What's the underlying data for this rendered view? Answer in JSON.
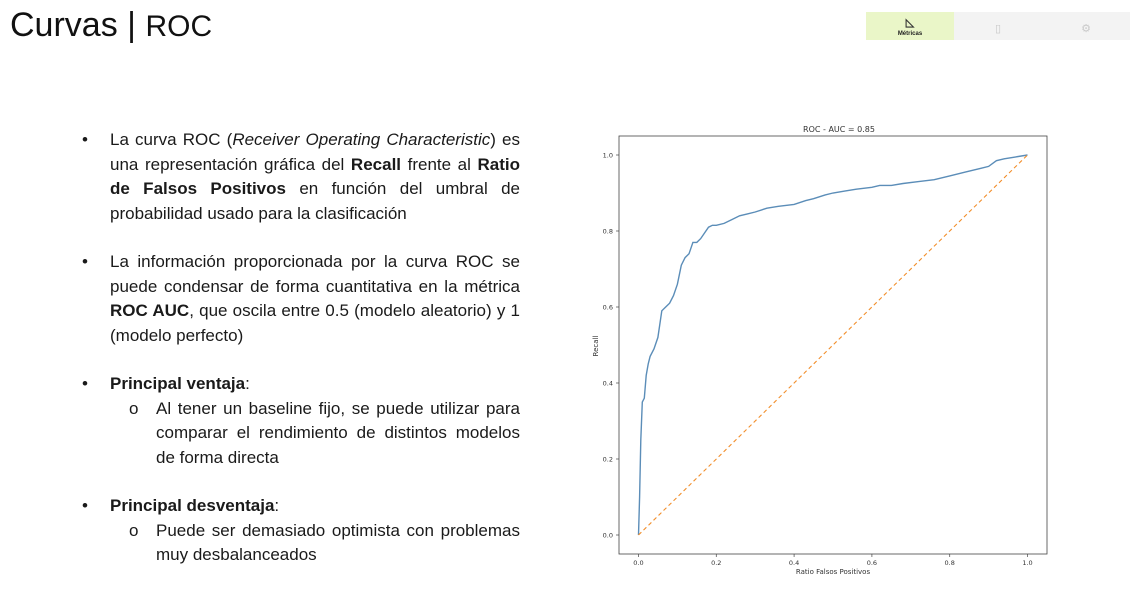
{
  "header": {
    "title_main": "Curvas |",
    "title_sub": "ROC"
  },
  "nav": {
    "tabs": [
      {
        "label": "Métricas",
        "active": true,
        "icon": "ruler-triangle-icon"
      },
      {
        "label": "",
        "active": false,
        "icon": "document-icon"
      },
      {
        "label": "",
        "active": false,
        "icon": "gears-icon"
      }
    ]
  },
  "content": {
    "b1": {
      "t1": "La curva ROC (",
      "t2": "Receiver Operating Characteristic",
      "t3": ") es una representación gráfica del ",
      "t4": "Recall",
      "t5": " frente al ",
      "t6": "Ratio de Falsos Positivos",
      "t7": " en función del umbral de probabilidad usado para la clasificación"
    },
    "b2": {
      "t1": "La información proporcionada por la curva ROC se puede condensar de forma cuantitativa en la métrica ",
      "t2": "ROC AUC",
      "t3": ", que oscila entre 0.5 (modelo aleatorio) y 1 (modelo perfecto)"
    },
    "b3": {
      "label": "Principal ventaja",
      "colon": ":",
      "sub": "Al tener un baseline fijo, se puede utilizar para comparar el rendimiento de distintos modelos de forma directa"
    },
    "b4": {
      "label": "Principal desventaja",
      "colon": ":",
      "sub": "Puede ser demasiado optimista con problemas muy desbalanceados"
    }
  },
  "chart_data": {
    "type": "line",
    "title": "ROC - AUC = 0.85",
    "xlabel": "Ratio Falsos Positivos",
    "ylabel": "Recall",
    "xlim": [
      -0.05,
      1.05
    ],
    "ylim": [
      -0.05,
      1.05
    ],
    "xticks": [
      "0.0",
      "0.2",
      "0.4",
      "0.6",
      "0.8",
      "1.0"
    ],
    "yticks": [
      "0.0",
      "0.2",
      "0.4",
      "0.6",
      "0.8",
      "1.0"
    ],
    "grid": false,
    "colors": {
      "roc": "#5b8db8",
      "baseline": "#f28e2b"
    },
    "series": [
      {
        "key": "roc",
        "style": "solid",
        "x": [
          0.0,
          0.003,
          0.006,
          0.01,
          0.015,
          0.02,
          0.025,
          0.03,
          0.04,
          0.05,
          0.06,
          0.07,
          0.08,
          0.09,
          0.1,
          0.11,
          0.12,
          0.13,
          0.14,
          0.15,
          0.16,
          0.18,
          0.19,
          0.2,
          0.22,
          0.24,
          0.26,
          0.28,
          0.3,
          0.33,
          0.36,
          0.4,
          0.43,
          0.45,
          0.48,
          0.5,
          0.53,
          0.56,
          0.6,
          0.62,
          0.65,
          0.68,
          0.72,
          0.76,
          0.8,
          0.84,
          0.86,
          0.88,
          0.9,
          0.92,
          0.94,
          0.97,
          1.0
        ],
        "y": [
          0.0,
          0.1,
          0.25,
          0.35,
          0.36,
          0.42,
          0.45,
          0.47,
          0.49,
          0.52,
          0.59,
          0.6,
          0.61,
          0.63,
          0.66,
          0.71,
          0.73,
          0.74,
          0.77,
          0.77,
          0.78,
          0.81,
          0.815,
          0.815,
          0.82,
          0.83,
          0.84,
          0.845,
          0.85,
          0.86,
          0.865,
          0.87,
          0.88,
          0.885,
          0.895,
          0.9,
          0.905,
          0.91,
          0.915,
          0.92,
          0.92,
          0.925,
          0.93,
          0.935,
          0.945,
          0.955,
          0.96,
          0.965,
          0.97,
          0.985,
          0.99,
          0.995,
          1.0
        ]
      },
      {
        "key": "baseline",
        "style": "dashed",
        "x": [
          0.0,
          1.0
        ],
        "y": [
          0.0,
          1.0
        ]
      }
    ]
  }
}
